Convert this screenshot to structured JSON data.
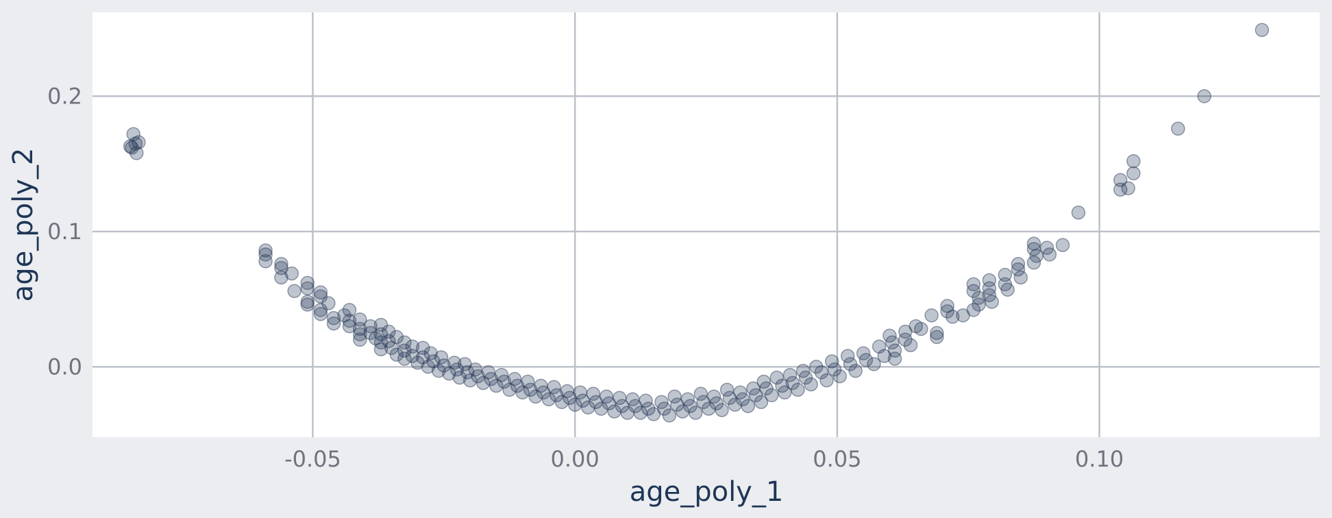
{
  "chart_data": {
    "type": "scatter",
    "title": "",
    "xlabel": "age_poly_1",
    "ylabel": "age_poly_2",
    "xlim": [
      -0.092,
      0.142
    ],
    "ylim": [
      -0.052,
      0.262
    ],
    "x_ticks": [
      {
        "value": -0.05,
        "label": "-0.05"
      },
      {
        "value": 0.0,
        "label": "0.00"
      },
      {
        "value": 0.05,
        "label": "0.05"
      },
      {
        "value": 0.1,
        "label": "0.10"
      }
    ],
    "y_ticks": [
      {
        "value": 0.0,
        "label": "0.0"
      },
      {
        "value": 0.1,
        "label": "0.1"
      },
      {
        "value": 0.2,
        "label": "0.2"
      }
    ],
    "grid": true,
    "legend": "none",
    "marker": {
      "color": "#2b3f5e",
      "edge_color": "#1f3050",
      "opacity": 0.3
    },
    "background": {
      "panel": "#ffffff",
      "page": "#ebedf0",
      "grid": "#bcc1c9"
    },
    "points": [
      [
        -0.0845,
        0.162
      ],
      [
        -0.0838,
        0.165
      ],
      [
        -0.0842,
        0.172
      ],
      [
        -0.0836,
        0.158
      ],
      [
        -0.0832,
        0.166
      ],
      [
        -0.0848,
        0.163
      ],
      [
        -0.059,
        0.086
      ],
      [
        -0.059,
        0.083
      ],
      [
        -0.059,
        0.078
      ],
      [
        -0.056,
        0.076
      ],
      [
        -0.056,
        0.073
      ],
      [
        -0.056,
        0.066
      ],
      [
        -0.054,
        0.069
      ],
      [
        -0.0535,
        0.056
      ],
      [
        -0.051,
        0.062
      ],
      [
        -0.051,
        0.058
      ],
      [
        -0.051,
        0.048
      ],
      [
        -0.051,
        0.046
      ],
      [
        -0.0485,
        0.055
      ],
      [
        -0.0485,
        0.052
      ],
      [
        -0.0485,
        0.042
      ],
      [
        -0.0485,
        0.039
      ],
      [
        -0.047,
        0.047
      ],
      [
        -0.046,
        0.036
      ],
      [
        -0.046,
        0.032
      ],
      [
        -0.044,
        0.038
      ],
      [
        -0.043,
        0.042
      ],
      [
        -0.043,
        0.034
      ],
      [
        -0.043,
        0.03
      ],
      [
        -0.041,
        0.035
      ],
      [
        -0.041,
        0.028
      ],
      [
        -0.041,
        0.024
      ],
      [
        -0.041,
        0.02
      ],
      [
        -0.039,
        0.03
      ],
      [
        -0.039,
        0.025
      ],
      [
        -0.038,
        0.021
      ],
      [
        -0.037,
        0.031
      ],
      [
        -0.037,
        0.024
      ],
      [
        -0.037,
        0.018
      ],
      [
        -0.037,
        0.013
      ],
      [
        -0.0355,
        0.026
      ],
      [
        -0.0355,
        0.019
      ],
      [
        -0.035,
        0.014
      ],
      [
        -0.034,
        0.009
      ],
      [
        -0.034,
        0.022
      ],
      [
        -0.0325,
        0.018
      ],
      [
        -0.0325,
        0.012
      ],
      [
        -0.0325,
        0.006
      ],
      [
        -0.031,
        0.015
      ],
      [
        -0.031,
        0.008
      ],
      [
        -0.03,
        0.003
      ],
      [
        -0.029,
        0.014
      ],
      [
        -0.029,
        0.007
      ],
      [
        -0.028,
        0.0
      ],
      [
        -0.0275,
        0.01
      ],
      [
        -0.027,
        0.004
      ],
      [
        -0.026,
        -0.003
      ],
      [
        -0.0255,
        0.007
      ],
      [
        -0.025,
        0.001
      ],
      [
        -0.024,
        -0.005
      ],
      [
        -0.023,
        0.003
      ],
      [
        -0.0225,
        -0.002
      ],
      [
        -0.022,
        -0.008
      ],
      [
        -0.021,
        0.002
      ],
      [
        -0.0205,
        -0.004
      ],
      [
        -0.02,
        -0.01
      ],
      [
        -0.019,
        -0.002
      ],
      [
        -0.0185,
        -0.007
      ],
      [
        -0.0175,
        -0.012
      ],
      [
        -0.0165,
        -0.004
      ],
      [
        -0.016,
        -0.009
      ],
      [
        -0.015,
        -0.014
      ],
      [
        -0.014,
        -0.006
      ],
      [
        -0.0135,
        -0.011
      ],
      [
        -0.0125,
        -0.017
      ],
      [
        -0.0115,
        -0.009
      ],
      [
        -0.011,
        -0.014
      ],
      [
        -0.01,
        -0.019
      ],
      [
        -0.009,
        -0.011
      ],
      [
        -0.0085,
        -0.017
      ],
      [
        -0.0075,
        -0.022
      ],
      [
        -0.0065,
        -0.014
      ],
      [
        -0.006,
        -0.019
      ],
      [
        -0.005,
        -0.024
      ],
      [
        -0.004,
        -0.015
      ],
      [
        -0.0035,
        -0.021
      ],
      [
        -0.0025,
        -0.026
      ],
      [
        -0.0015,
        -0.018
      ],
      [
        -0.001,
        -0.023
      ],
      [
        0.0,
        -0.028
      ],
      [
        0.001,
        -0.019
      ],
      [
        0.0015,
        -0.025
      ],
      [
        0.0025,
        -0.03
      ],
      [
        0.0035,
        -0.02
      ],
      [
        0.004,
        -0.026
      ],
      [
        0.005,
        -0.031
      ],
      [
        0.006,
        -0.022
      ],
      [
        0.0065,
        -0.027
      ],
      [
        0.0075,
        -0.033
      ],
      [
        0.0085,
        -0.023
      ],
      [
        0.009,
        -0.029
      ],
      [
        0.01,
        -0.034
      ],
      [
        0.011,
        -0.024
      ],
      [
        0.0115,
        -0.029
      ],
      [
        0.0125,
        -0.034
      ],
      [
        0.0135,
        -0.025
      ],
      [
        0.014,
        -0.031
      ],
      [
        0.015,
        -0.035
      ],
      [
        0.0165,
        -0.026
      ],
      [
        0.017,
        -0.031
      ],
      [
        0.018,
        -0.036
      ],
      [
        0.019,
        -0.022
      ],
      [
        0.0195,
        -0.028
      ],
      [
        0.0205,
        -0.033
      ],
      [
        0.0215,
        -0.024
      ],
      [
        0.022,
        -0.029
      ],
      [
        0.023,
        -0.034
      ],
      [
        0.024,
        -0.02
      ],
      [
        0.0245,
        -0.026
      ],
      [
        0.0255,
        -0.031
      ],
      [
        0.0265,
        -0.022
      ],
      [
        0.027,
        -0.027
      ],
      [
        0.028,
        -0.032
      ],
      [
        0.029,
        -0.017
      ],
      [
        0.0295,
        -0.023
      ],
      [
        0.0305,
        -0.028
      ],
      [
        0.0315,
        -0.019
      ],
      [
        0.032,
        -0.024
      ],
      [
        0.033,
        -0.029
      ],
      [
        0.034,
        -0.016
      ],
      [
        0.0345,
        -0.021
      ],
      [
        0.0355,
        -0.026
      ],
      [
        0.036,
        -0.011
      ],
      [
        0.0365,
        -0.016
      ],
      [
        0.0375,
        -0.021
      ],
      [
        0.0385,
        -0.008
      ],
      [
        0.0395,
        -0.014
      ],
      [
        0.04,
        -0.019
      ],
      [
        0.041,
        -0.006
      ],
      [
        0.0415,
        -0.012
      ],
      [
        0.0425,
        -0.017
      ],
      [
        0.0435,
        -0.003
      ],
      [
        0.044,
        -0.008
      ],
      [
        0.045,
        -0.013
      ],
      [
        0.046,
        0.0
      ],
      [
        0.047,
        -0.004
      ],
      [
        0.048,
        -0.01
      ],
      [
        0.049,
        0.004
      ],
      [
        0.0495,
        -0.002
      ],
      [
        0.0505,
        -0.007
      ],
      [
        0.052,
        0.008
      ],
      [
        0.0525,
        0.002
      ],
      [
        0.0535,
        -0.003
      ],
      [
        0.055,
        0.01
      ],
      [
        0.0555,
        0.005
      ],
      [
        0.057,
        0.002
      ],
      [
        0.058,
        0.015
      ],
      [
        0.059,
        0.008
      ],
      [
        0.06,
        0.023
      ],
      [
        0.0605,
        0.018
      ],
      [
        0.061,
        0.012
      ],
      [
        0.061,
        0.006
      ],
      [
        0.063,
        0.026
      ],
      [
        0.063,
        0.02
      ],
      [
        0.064,
        0.016
      ],
      [
        0.065,
        0.03
      ],
      [
        0.066,
        0.028
      ],
      [
        0.068,
        0.038
      ],
      [
        0.069,
        0.025
      ],
      [
        0.069,
        0.022
      ],
      [
        0.071,
        0.045
      ],
      [
        0.071,
        0.041
      ],
      [
        0.072,
        0.037
      ],
      [
        0.074,
        0.038
      ],
      [
        0.076,
        0.061
      ],
      [
        0.076,
        0.056
      ],
      [
        0.077,
        0.051
      ],
      [
        0.077,
        0.046
      ],
      [
        0.076,
        0.042
      ],
      [
        0.079,
        0.064
      ],
      [
        0.079,
        0.058
      ],
      [
        0.079,
        0.053
      ],
      [
        0.0795,
        0.048
      ],
      [
        0.082,
        0.068
      ],
      [
        0.082,
        0.061
      ],
      [
        0.0825,
        0.057
      ],
      [
        0.0845,
        0.076
      ],
      [
        0.0845,
        0.072
      ],
      [
        0.085,
        0.066
      ],
      [
        0.0875,
        0.091
      ],
      [
        0.0875,
        0.087
      ],
      [
        0.088,
        0.082
      ],
      [
        0.0875,
        0.077
      ],
      [
        0.09,
        0.088
      ],
      [
        0.0905,
        0.083
      ],
      [
        0.093,
        0.09
      ],
      [
        0.096,
        0.114
      ],
      [
        0.104,
        0.138
      ],
      [
        0.104,
        0.131
      ],
      [
        0.1055,
        0.132
      ],
      [
        0.1065,
        0.152
      ],
      [
        0.1065,
        0.143
      ],
      [
        0.115,
        0.176
      ],
      [
        0.12,
        0.2
      ],
      [
        0.131,
        0.249
      ]
    ]
  }
}
